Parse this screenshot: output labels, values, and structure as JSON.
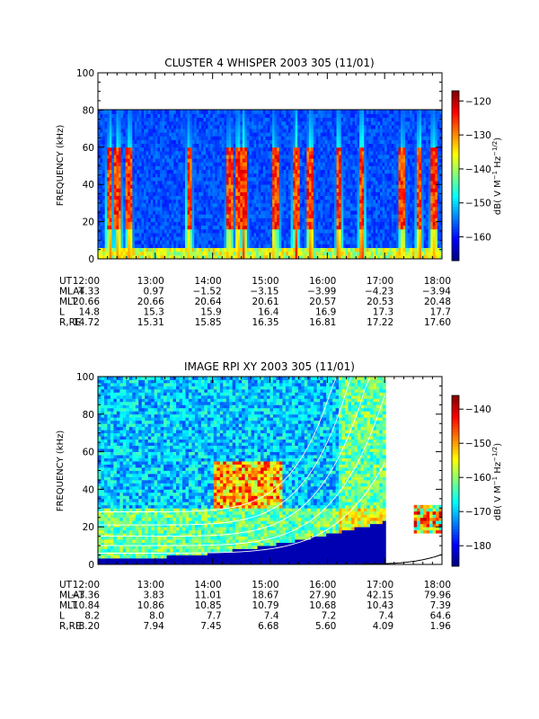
{
  "chart_data": [
    {
      "type": "heatmap",
      "title": "CLUSTER 4 WHISPER 2003 305 (11/01)",
      "ylabel": "FREQUENCY (kHz)",
      "x_ticks": [
        "12:00",
        "13:00",
        "14:00",
        "15:00",
        "16:00",
        "17:00",
        "18:00"
      ],
      "y_ticks": [
        "0",
        "20",
        "40",
        "60",
        "80",
        "100"
      ],
      "ylim": [
        0,
        100
      ],
      "data_top_khz": 80,
      "colorbar": {
        "label": "dB( V M⁻¹ Hz⁻¹ᐟ²)",
        "label_parts": [
          "dB( V M",
          "−1",
          " Hz",
          "−1/2",
          ")"
        ],
        "ticks": [
          "−120",
          "−130",
          "−140",
          "−150",
          "−160"
        ],
        "tick_values": [
          -120,
          -130,
          -140,
          -150,
          -160
        ],
        "range": [
          -167,
          -117
        ]
      },
      "ephemeris": {
        "labels": [
          "UT",
          "MLAT",
          "MLT",
          "L",
          "R,RE"
        ],
        "rows": [
          [
            "12:00",
            "13:00",
            "14:00",
            "15:00",
            "16:00",
            "17:00",
            "18:00"
          ],
          [
            "4.33",
            "0.97",
            "−1.52",
            "−3.15",
            "−3.99",
            "−4.23",
            "−3.94"
          ],
          [
            "20.66",
            "20.66",
            "20.64",
            "20.61",
            "20.57",
            "20.53",
            "20.48"
          ],
          [
            "14.8",
            "15.3",
            "15.9",
            "16.4",
            "16.9",
            "17.3",
            "17.7"
          ],
          [
            "14.72",
            "15.31",
            "15.85",
            "16.35",
            "16.81",
            "17.22",
            "17.60"
          ]
        ]
      }
    },
    {
      "type": "heatmap",
      "title": "IMAGE RPI XY 2003 305 (11/01)",
      "ylabel": "FREQUENCY (kHz)",
      "x_ticks": [
        "12:00",
        "13:00",
        "14:00",
        "15:00",
        "16:00",
        "17:00",
        "18:00"
      ],
      "y_ticks": [
        "0",
        "20",
        "40",
        "60",
        "80",
        "100"
      ],
      "ylim": [
        0,
        100
      ],
      "colorbar": {
        "label": "dB( V M⁻¹ Hz⁻¹ᐟ²)",
        "label_parts": [
          "dB( V M",
          "−1",
          " Hz",
          "−1/2",
          ")"
        ],
        "ticks": [
          "−140",
          "−150",
          "−160",
          "−170",
          "−180"
        ],
        "tick_values": [
          -140,
          -150,
          -160,
          -170,
          -180
        ],
        "range": [
          -186,
          -136
        ]
      },
      "ephemeris": {
        "labels": [
          "UT",
          "MLAT",
          "MLT",
          "L",
          "R,RE"
        ],
        "rows": [
          [
            "12:00",
            "13:00",
            "14:00",
            "15:00",
            "16:00",
            "17:00",
            "18:00"
          ],
          [
            "−3.36",
            "3.83",
            "11.01",
            "18.67",
            "27.90",
            "42.15",
            "79.96"
          ],
          [
            "10.84",
            "10.86",
            "10.85",
            "10.79",
            "10.68",
            "10.43",
            "7.39"
          ],
          [
            "8.2",
            "8.0",
            "7.7",
            "7.4",
            "7.2",
            "7.4",
            "64.6"
          ],
          [
            "8.20",
            "7.94",
            "7.45",
            "6.68",
            "5.60",
            "4.09",
            "1.96"
          ]
        ]
      }
    }
  ]
}
